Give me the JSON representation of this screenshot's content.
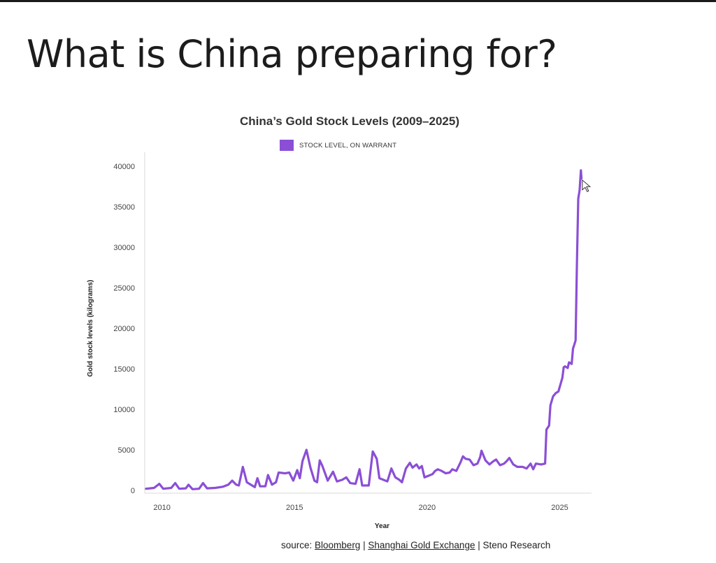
{
  "slide": {
    "title": "What is China preparing for?"
  },
  "chart_data": {
    "type": "line",
    "title": "China’s Gold Stock Levels (2009–2025)",
    "xlabel": "Year",
    "ylabel": "Gold stock levels (kilograms)",
    "xlim": [
      2009.35,
      2026.2
    ],
    "ylim": [
      0,
      40000
    ],
    "xticks": [
      2010,
      2015,
      2020,
      2025
    ],
    "yticks": [
      0,
      5000,
      10000,
      15000,
      20000,
      25000,
      30000,
      35000,
      40000
    ],
    "legend_position": "top-center",
    "series": [
      {
        "name": "STOCK LEVEL, ON WARRANT",
        "color": "#8b4fd6",
        "points": [
          [
            2009.4,
            200
          ],
          [
            2009.7,
            300
          ],
          [
            2009.9,
            800
          ],
          [
            2010.05,
            200
          ],
          [
            2010.35,
            300
          ],
          [
            2010.5,
            900
          ],
          [
            2010.65,
            200
          ],
          [
            2010.9,
            250
          ],
          [
            2011.0,
            700
          ],
          [
            2011.15,
            150
          ],
          [
            2011.4,
            200
          ],
          [
            2011.55,
            900
          ],
          [
            2011.7,
            250
          ],
          [
            2012.0,
            300
          ],
          [
            2012.3,
            450
          ],
          [
            2012.5,
            700
          ],
          [
            2012.65,
            1200
          ],
          [
            2012.8,
            700
          ],
          [
            2012.9,
            600
          ],
          [
            2013.05,
            2900
          ],
          [
            2013.2,
            1000
          ],
          [
            2013.35,
            700
          ],
          [
            2013.5,
            400
          ],
          [
            2013.6,
            1500
          ],
          [
            2013.7,
            500
          ],
          [
            2013.9,
            500
          ],
          [
            2014.0,
            1900
          ],
          [
            2014.15,
            700
          ],
          [
            2014.3,
            1000
          ],
          [
            2014.4,
            2200
          ],
          [
            2014.65,
            2100
          ],
          [
            2014.8,
            2200
          ],
          [
            2014.95,
            1200
          ],
          [
            2015.1,
            2500
          ],
          [
            2015.2,
            1500
          ],
          [
            2015.3,
            3600
          ],
          [
            2015.45,
            5000
          ],
          [
            2015.6,
            2800
          ],
          [
            2015.75,
            1200
          ],
          [
            2015.85,
            1000
          ],
          [
            2015.95,
            3700
          ],
          [
            2016.05,
            3000
          ],
          [
            2016.25,
            1200
          ],
          [
            2016.45,
            2300
          ],
          [
            2016.6,
            1100
          ],
          [
            2016.8,
            1300
          ],
          [
            2016.95,
            1600
          ],
          [
            2017.1,
            900
          ],
          [
            2017.3,
            800
          ],
          [
            2017.45,
            2600
          ],
          [
            2017.55,
            600
          ],
          [
            2017.8,
            600
          ],
          [
            2017.95,
            4800
          ],
          [
            2018.1,
            3900
          ],
          [
            2018.2,
            1500
          ],
          [
            2018.35,
            1300
          ],
          [
            2018.5,
            1100
          ],
          [
            2018.65,
            2700
          ],
          [
            2018.8,
            1600
          ],
          [
            2018.95,
            1300
          ],
          [
            2019.05,
            1000
          ],
          [
            2019.2,
            2700
          ],
          [
            2019.35,
            3400
          ],
          [
            2019.45,
            2800
          ],
          [
            2019.6,
            3200
          ],
          [
            2019.7,
            2700
          ],
          [
            2019.8,
            3000
          ],
          [
            2019.9,
            1600
          ],
          [
            2020.05,
            1800
          ],
          [
            2020.2,
            2000
          ],
          [
            2020.3,
            2400
          ],
          [
            2020.4,
            2600
          ],
          [
            2020.55,
            2400
          ],
          [
            2020.7,
            2100
          ],
          [
            2020.85,
            2200
          ],
          [
            2020.95,
            2600
          ],
          [
            2021.1,
            2400
          ],
          [
            2021.25,
            3400
          ],
          [
            2021.35,
            4200
          ],
          [
            2021.45,
            3900
          ],
          [
            2021.6,
            3800
          ],
          [
            2021.75,
            3100
          ],
          [
            2021.9,
            3300
          ],
          [
            2022.0,
            4100
          ],
          [
            2022.05,
            4900
          ],
          [
            2022.2,
            3700
          ],
          [
            2022.35,
            3200
          ],
          [
            2022.5,
            3600
          ],
          [
            2022.6,
            3800
          ],
          [
            2022.75,
            3100
          ],
          [
            2022.9,
            3300
          ],
          [
            2023.0,
            3600
          ],
          [
            2023.1,
            4000
          ],
          [
            2023.25,
            3200
          ],
          [
            2023.4,
            2900
          ],
          [
            2023.6,
            2900
          ],
          [
            2023.75,
            2700
          ],
          [
            2023.9,
            3300
          ],
          [
            2024.0,
            2600
          ],
          [
            2024.1,
            3300
          ],
          [
            2024.3,
            3200
          ],
          [
            2024.45,
            3300
          ],
          [
            2024.5,
            7500
          ],
          [
            2024.6,
            8000
          ],
          [
            2024.65,
            10500
          ],
          [
            2024.75,
            11600
          ],
          [
            2024.85,
            12000
          ],
          [
            2024.95,
            12200
          ],
          [
            2025.1,
            13900
          ],
          [
            2025.15,
            15200
          ],
          [
            2025.2,
            15300
          ],
          [
            2025.3,
            15100
          ],
          [
            2025.35,
            15800
          ],
          [
            2025.45,
            15600
          ],
          [
            2025.5,
            17500
          ],
          [
            2025.55,
            18000
          ],
          [
            2025.6,
            18500
          ],
          [
            2025.65,
            28000
          ],
          [
            2025.7,
            36000
          ],
          [
            2025.75,
            37000
          ],
          [
            2025.8,
            39500
          ],
          [
            2025.82,
            38500
          ]
        ]
      }
    ]
  },
  "source": {
    "prefix": "source: ",
    "bloomberg": "Bloomberg",
    "sep1": " | ",
    "sge": "Shanghai Gold Exchange",
    "sep2": " | ",
    "steno": "Steno Research"
  }
}
